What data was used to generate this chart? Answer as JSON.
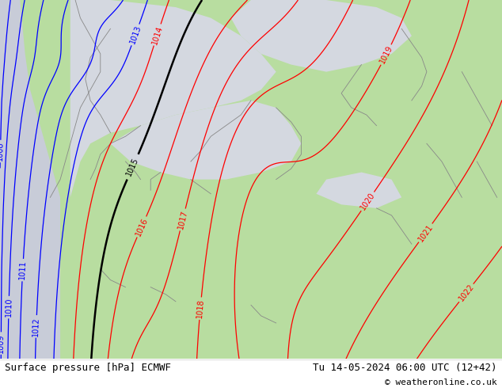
{
  "title_left": "Surface pressure [hPa] ECMWF",
  "title_right": "Tu 14-05-2024 06:00 UTC (12+42)",
  "copyright": "© weatheronline.co.uk",
  "land_color": "#b8dda0",
  "sea_color": "#d4d8e0",
  "ocean_color": "#c8ccd8",
  "contour_red": "#ff0000",
  "contour_blue": "#0000ff",
  "contour_black": "#000000",
  "coastline_color": "#888888",
  "label_fontsize": 7,
  "title_fontsize": 9,
  "copyright_fontsize": 8,
  "figwidth": 6.34,
  "figheight": 4.9,
  "dpi": 100
}
